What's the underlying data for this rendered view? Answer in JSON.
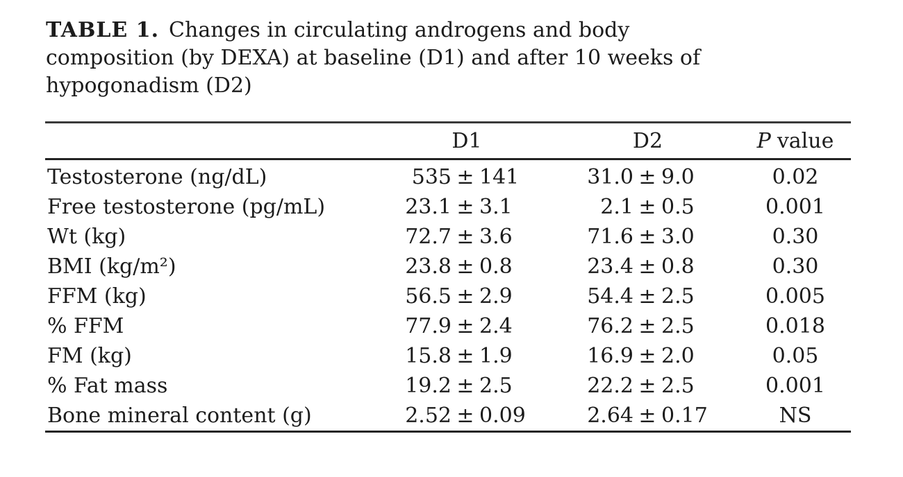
{
  "caption": {
    "label": "TABLE 1.",
    "lines": [
      "Changes in circulating androgens and body",
      "composition (by DEXA) at baseline (D1) and after 10 weeks of",
      "hypogonadism (D2)"
    ]
  },
  "header": {
    "d1": "D1",
    "d2": "D2",
    "p_italic": "P",
    "p_rest": "value"
  },
  "pm": "±",
  "rows": [
    {
      "label": "Testosterone (ng/dL)",
      "d1m": "535",
      "d1s": "141",
      "d2m": "31.0",
      "d2s": "9.0",
      "p": "0.02"
    },
    {
      "label": "Free testosterone (pg/mL)",
      "d1m": "23.1",
      "d1s": "3.1",
      "d2m": "2.1",
      "d2s": "0.5",
      "p": "0.001"
    },
    {
      "label": "Wt (kg)",
      "d1m": "72.7",
      "d1s": "3.6",
      "d2m": "71.6",
      "d2s": "3.0",
      "p": "0.30"
    },
    {
      "label": "BMI (kg/m²)",
      "d1m": "23.8",
      "d1s": "0.8",
      "d2m": "23.4",
      "d2s": "0.8",
      "p": "0.30"
    },
    {
      "label": "FFM (kg)",
      "d1m": "56.5",
      "d1s": "2.9",
      "d2m": "54.4",
      "d2s": "2.5",
      "p": "0.005"
    },
    {
      "label": "% FFM",
      "d1m": "77.9",
      "d1s": "2.4",
      "d2m": "76.2",
      "d2s": "2.5",
      "p": "0.018"
    },
    {
      "label": "FM (kg)",
      "d1m": "15.8",
      "d1s": "1.9",
      "d2m": "16.9",
      "d2s": "2.0",
      "p": "0.05"
    },
    {
      "label": "% Fat mass",
      "d1m": "19.2",
      "d1s": "2.5",
      "d2m": "22.2",
      "d2s": "2.5",
      "p": "0.001"
    },
    {
      "label": "Bone mineral content (g)",
      "d1m": "2.52",
      "d1s": "0.09",
      "d2m": "2.64",
      "d2s": "0.17",
      "p": "NS"
    }
  ],
  "colors": {
    "text": "#1c1c1c",
    "rule": "#222222",
    "background": "#ffffff"
  }
}
